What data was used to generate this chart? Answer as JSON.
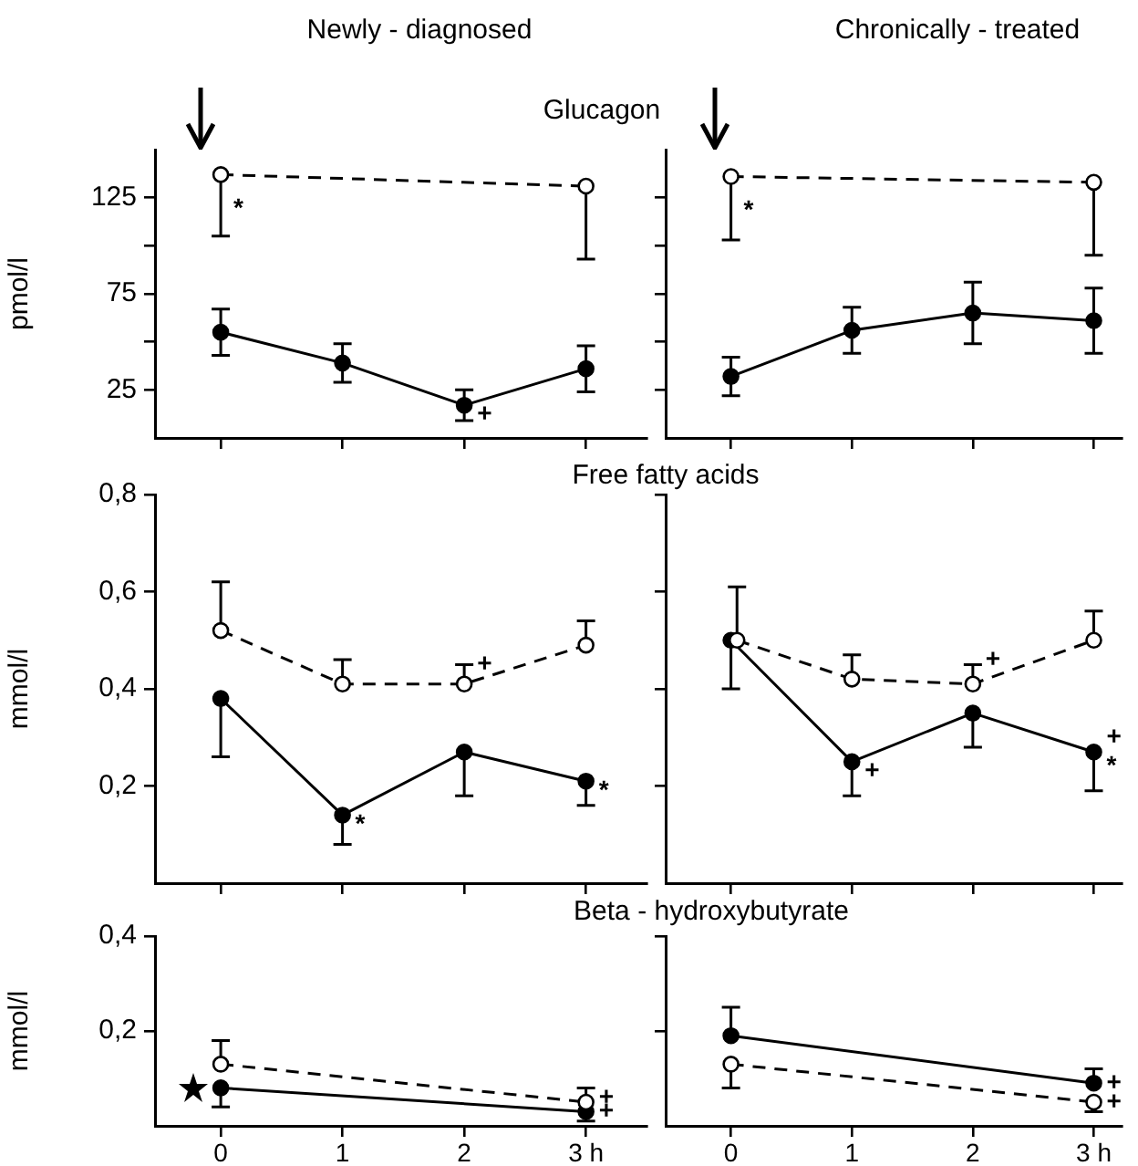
{
  "chart_data": [
    {
      "type": "line",
      "title": "Glucagon",
      "subtitle": "Newly - diagnosed",
      "ylabel": "pmol/l",
      "xlim": [
        -0.54,
        3.5
      ],
      "xticks": [
        {
          "value": 0,
          "label": null
        },
        {
          "value": 1,
          "label": null
        },
        {
          "value": 2,
          "label": null
        },
        {
          "value": 3,
          "label": null
        }
      ],
      "ylim": [
        0,
        150
      ],
      "yticks": [
        25,
        {
          "value": 50,
          "label": null
        },
        75,
        {
          "value": 100,
          "label": null
        },
        125
      ],
      "tick_labels": "y",
      "marker": "circle",
      "series": [
        {
          "color": "#000000",
          "line_style": "dashed",
          "x": [
            0,
            3
          ],
          "values": [
            137,
            131
          ],
          "errors": [
            [
              105,
              137
            ],
            [
              93,
              131
            ]
          ]
        },
        {
          "color": "#000000",
          "line_style": "solid",
          "x": [
            0,
            1,
            2,
            3
          ],
          "values": [
            55,
            39,
            17,
            36
          ],
          "errors": [
            [
              43,
              67
            ],
            [
              29,
              49
            ],
            [
              9,
              25
            ],
            [
              24,
              48
            ]
          ]
        }
      ],
      "annotations": [
        {
          "text": "*",
          "x": 0,
          "y": 119
        },
        {
          "text": "+",
          "x": 2,
          "y": 12
        }
      ]
    },
    {
      "type": "line",
      "subtitle": "Chronically - treated",
      "xlim": [
        -0.54,
        3.23
      ],
      "xticks": [
        {
          "value": 0,
          "label": null
        },
        {
          "value": 1,
          "label": null
        },
        {
          "value": 2,
          "label": null
        },
        {
          "value": 3,
          "label": null
        }
      ],
      "ylim": [
        0,
        150
      ],
      "yticks": [
        {
          "value": 25,
          "label": null
        },
        {
          "value": 50,
          "label": null
        },
        {
          "value": 75,
          "label": null
        },
        {
          "value": 100,
          "label": null
        },
        {
          "value": 125,
          "label": null
        }
      ],
      "tick_labels": false,
      "marker": "circle",
      "series": [
        {
          "color": "#000000",
          "line_style": "dashed",
          "x": [
            0,
            3
          ],
          "values": [
            136,
            133
          ],
          "errors": [
            [
              103,
              136
            ],
            [
              95,
              133
            ]
          ]
        },
        {
          "color": "#000000",
          "line_style": "solid",
          "x": [
            0,
            1,
            2,
            3
          ],
          "values": [
            32,
            56,
            65,
            61
          ],
          "errors": [
            [
              22,
              42
            ],
            [
              44,
              68
            ],
            [
              49,
              81
            ],
            [
              44,
              78
            ]
          ]
        }
      ],
      "annotations": [
        {
          "text": "*",
          "x": 0,
          "y": 118
        }
      ]
    },
    {
      "type": "line",
      "title": "Free fatty acids",
      "ylabel": "mmol/l",
      "xlim": [
        -0.54,
        3.5
      ],
      "xticks": [
        {
          "value": 0,
          "label": null
        },
        {
          "value": 1,
          "label": null
        },
        {
          "value": 2,
          "label": null
        },
        {
          "value": 3,
          "label": null
        }
      ],
      "ylim": [
        0,
        0.8
      ],
      "yticks": [
        {
          "value": 0.2,
          "label": "0,2"
        },
        {
          "value": 0.4,
          "label": "0,4"
        },
        {
          "value": 0.6,
          "label": "0,6"
        },
        {
          "value": 0.8,
          "label": "0,8"
        }
      ],
      "tick_labels": "y",
      "marker": "circle",
      "series": [
        {
          "color": "#000000",
          "line_style": "dashed",
          "x": [
            0,
            1,
            2,
            3
          ],
          "values": [
            0.52,
            0.41,
            0.41,
            0.49
          ],
          "errors": [
            [
              0.52,
              0.62
            ],
            [
              0.41,
              0.46
            ],
            [
              0.41,
              0.45
            ],
            [
              0.49,
              0.54
            ]
          ]
        },
        {
          "color": "#000000",
          "line_style": "solid",
          "x": [
            0,
            1,
            2,
            3
          ],
          "values": [
            0.38,
            0.14,
            0.27,
            0.21
          ],
          "errors": [
            [
              0.26,
              0.38
            ],
            [
              0.08,
              0.14
            ],
            [
              0.18,
              0.27
            ],
            [
              0.16,
              0.21
            ]
          ]
        }
      ],
      "annotations": [
        {
          "text": "+",
          "x": 2,
          "y": 0.45
        },
        {
          "text": "*",
          "x": 1,
          "y": 0.12
        },
        {
          "text": "*",
          "x": 3,
          "y": 0.19
        }
      ]
    },
    {
      "type": "line",
      "xlim": [
        -0.54,
        3.23
      ],
      "xticks": [
        {
          "value": 0,
          "label": null
        },
        {
          "value": 1,
          "label": null
        },
        {
          "value": 2,
          "label": null
        },
        {
          "value": 3,
          "label": null
        }
      ],
      "ylim": [
        0,
        0.8
      ],
      "yticks": [
        {
          "value": 0.2,
          "label": null
        },
        {
          "value": 0.4,
          "label": null
        },
        {
          "value": 0.6,
          "label": null
        },
        {
          "value": 0.8,
          "label": null
        }
      ],
      "tick_labels": false,
      "marker": "circle",
      "series": [
        {
          "color": "#000000",
          "line_style": "dashed",
          "x": [
            0.05,
            1,
            2,
            3
          ],
          "values": [
            0.5,
            0.42,
            0.41,
            0.5
          ],
          "errors": [
            [
              0.5,
              0.61
            ],
            [
              0.42,
              0.47
            ],
            [
              0.41,
              0.45
            ],
            [
              0.5,
              0.56
            ]
          ]
        },
        {
          "color": "#000000",
          "line_style": "solid",
          "x": [
            0,
            1,
            2,
            3
          ],
          "values": [
            0.5,
            0.25,
            0.35,
            0.27
          ],
          "errors": [
            [
              0.4,
              0.5
            ],
            [
              0.18,
              0.25
            ],
            [
              0.28,
              0.35
            ],
            [
              0.19,
              0.27
            ]
          ]
        }
      ],
      "annotations": [
        {
          "text": "+",
          "x": 2,
          "y": 0.46
        },
        {
          "text": "+",
          "x": 1,
          "y": 0.23
        },
        {
          "text": "+",
          "x": 3,
          "y": 0.3
        },
        {
          "text": "*",
          "x": 3,
          "y": 0.24
        }
      ]
    },
    {
      "type": "line",
      "title": "Beta - hydroxybutyrate",
      "ylabel": "mmol/l",
      "xlim": [
        -0.54,
        3.5
      ],
      "xticks": [
        0,
        1,
        2,
        {
          "value": 3,
          "label": "3 h"
        }
      ],
      "ylim": [
        0,
        0.4
      ],
      "yticks": [
        {
          "value": 0.2,
          "label": "0,2"
        },
        {
          "value": 0.4,
          "label": "0,4"
        }
      ],
      "marker": "circle",
      "series": [
        {
          "color": "#000000",
          "line_style": "dashed",
          "x": [
            0,
            3
          ],
          "values": [
            0.13,
            0.05
          ],
          "errors": [
            [
              0.13,
              0.18
            ],
            [
              0.05,
              0.08
            ]
          ]
        },
        {
          "color": "#000000",
          "line_style": "solid",
          "x": [
            0,
            3
          ],
          "values": [
            0.08,
            0.03
          ],
          "errors": [
            [
              0.04,
              0.08
            ],
            [
              0.01,
              0.03
            ]
          ]
        }
      ],
      "annotations": [
        {
          "text": "+",
          "x": 3,
          "y": 0.06
        },
        {
          "text": "+",
          "x": 3,
          "y": 0.03
        }
      ]
    },
    {
      "type": "line",
      "xlim": [
        -0.54,
        3.23
      ],
      "xticks": [
        0,
        1,
        2,
        {
          "value": 3,
          "label": "3 h"
        }
      ],
      "ylim": [
        0,
        0.4
      ],
      "yticks": [
        {
          "value": 0.2,
          "label": null
        },
        {
          "value": 0.4,
          "label": null
        }
      ],
      "tick_labels": "x",
      "marker": "circle",
      "series": [
        {
          "color": "#000000",
          "line_style": "solid",
          "x": [
            0,
            3
          ],
          "values": [
            0.19,
            0.09
          ],
          "errors": [
            [
              0.19,
              0.25
            ],
            [
              0.09,
              0.12
            ]
          ]
        },
        {
          "color": "#000000",
          "line_style": "dashed",
          "x": [
            0,
            3
          ],
          "values": [
            0.13,
            0.05
          ],
          "errors": [
            [
              0.08,
              0.13
            ],
            [
              0.03,
              0.05
            ]
          ]
        }
      ],
      "annotations": [
        {
          "text": "+",
          "x": 3,
          "y": 0.09
        },
        {
          "text": "+",
          "x": 3,
          "y": 0.05
        }
      ]
    }
  ]
}
